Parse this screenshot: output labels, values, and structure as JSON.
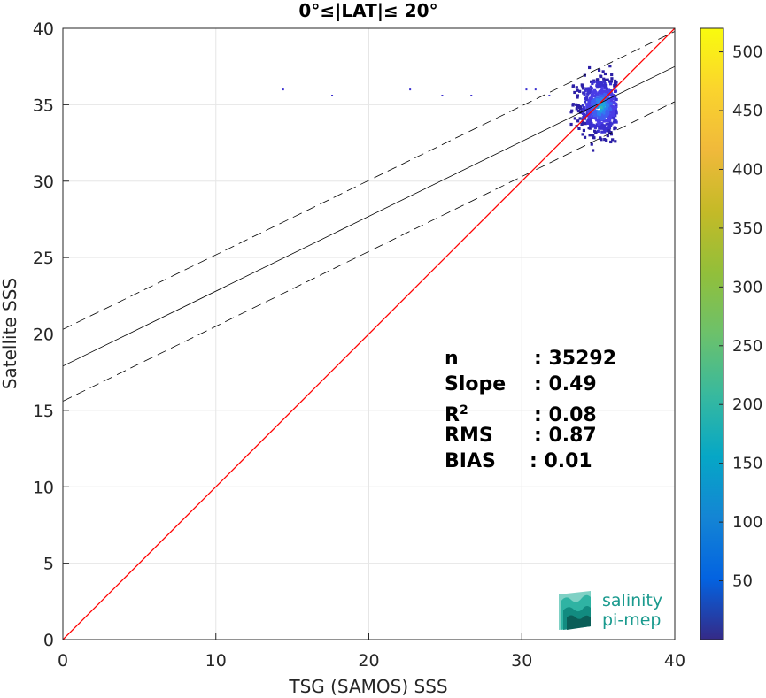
{
  "chart_data": {
    "type": "heatmap",
    "title": "0°≤|LAT|≤ 20°",
    "xlabel": "TSG (SAMOS) SSS",
    "ylabel": "Satellite SSS",
    "xlim": [
      0,
      40
    ],
    "ylim": [
      0,
      40
    ],
    "xticks": [
      "0",
      "10",
      "20",
      "30",
      "40"
    ],
    "yticks": [
      "0",
      "5",
      "10",
      "15",
      "20",
      "25",
      "30",
      "35",
      "40"
    ],
    "grid": true,
    "one_to_one_line": {
      "color": "#ff0000",
      "x": [
        0,
        40
      ],
      "y": [
        0,
        40
      ]
    },
    "regression_line": {
      "color": "#000000",
      "x": [
        0,
        40
      ],
      "y": [
        17.9,
        37.5
      ]
    },
    "confidence_bounds": [
      {
        "style": "dashed",
        "x": [
          0,
          40
        ],
        "y": [
          20.3,
          39.8
        ]
      },
      {
        "style": "dashed",
        "x": [
          0,
          40
        ],
        "y": [
          15.6,
          35.2
        ]
      }
    ],
    "density_cluster": {
      "center": [
        35.2,
        34.9
      ],
      "x_range": [
        32.5,
        36.2
      ],
      "y_range": [
        30.4,
        39.4
      ]
    },
    "outliers": [
      [
        14.4,
        36.0
      ],
      [
        17.6,
        35.6
      ],
      [
        22.7,
        36.0
      ],
      [
        24.8,
        35.6
      ],
      [
        26.7,
        35.6
      ],
      [
        30.3,
        36.0
      ],
      [
        30.9,
        36.0
      ],
      [
        31.8,
        35.6
      ]
    ],
    "stats": [
      {
        "label": "n",
        "value": ": 35292"
      },
      {
        "label": "Slope",
        "value": ": 0.49"
      },
      {
        "label": "R",
        "sup": "2",
        "value": ": 0.08"
      },
      {
        "label": "RMS",
        "value": ": 0.87"
      },
      {
        "label": "BIAS",
        "value": ": 0.01"
      }
    ],
    "colorbar": {
      "colormap": "parula",
      "range": [
        0,
        520
      ],
      "ticks": [
        "50",
        "100",
        "150",
        "200",
        "250",
        "300",
        "350",
        "400",
        "450",
        "500"
      ]
    }
  },
  "logo": {
    "line1": "salinity",
    "line2": "pi-mep"
  }
}
